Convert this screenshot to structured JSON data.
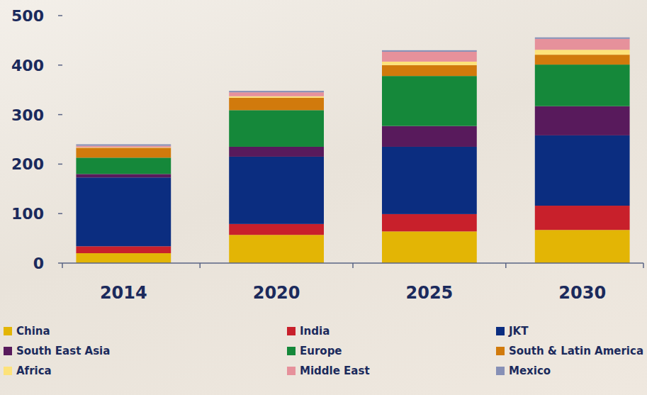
{
  "chart_data": {
    "type": "bar",
    "stacked": true,
    "grid": false,
    "legend": "bottom",
    "categories": [
      "2014",
      "2020",
      "2025",
      "2030"
    ],
    "ylim": [
      0,
      500
    ],
    "yticks": [
      0,
      100,
      200,
      300,
      400,
      500
    ],
    "series": [
      {
        "name": "China",
        "color": "#e3b505",
        "values": [
          20,
          57,
          64,
          67
        ]
      },
      {
        "name": "India",
        "color": "#c8202b",
        "values": [
          14,
          22,
          35,
          49
        ]
      },
      {
        "name": "JKT",
        "color": "#0b2d80",
        "values": [
          139,
          136,
          136,
          142
        ]
      },
      {
        "name": "South East Asia",
        "color": "#581a5c",
        "values": [
          7,
          20,
          42,
          59
        ]
      },
      {
        "name": "Europe",
        "color": "#15883a",
        "values": [
          33,
          74,
          101,
          84
        ]
      },
      {
        "name": "South & Latin America",
        "color": "#d17a0c",
        "values": [
          20,
          25,
          22,
          20
        ]
      },
      {
        "name": "Africa",
        "color": "#fde27a",
        "values": [
          1,
          3,
          7,
          10
        ]
      },
      {
        "name": "Middle East",
        "color": "#e6919b",
        "values": [
          3,
          8,
          20,
          22
        ]
      },
      {
        "name": "Mexico",
        "color": "#8790b6",
        "values": [
          3,
          3,
          3,
          3
        ]
      }
    ]
  }
}
